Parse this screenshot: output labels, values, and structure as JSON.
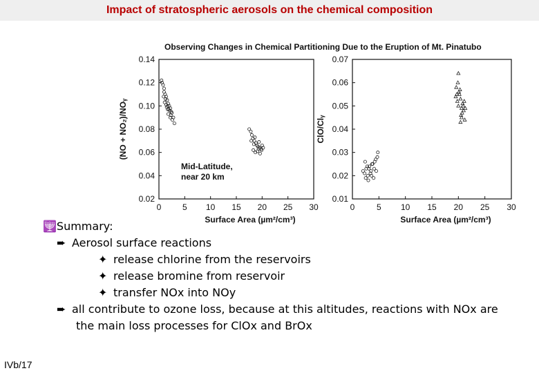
{
  "slide": {
    "title": "Impact of stratospheric aerosols on the chemical composition",
    "page_number": "IVb/17"
  },
  "figure": {
    "title": "Observing Changes in Chemical Partitioning Due to the Eruption of Mt. Pinatubo",
    "annotation_line1": "Mid-Latitude,",
    "annotation_line2": "near 20 km"
  },
  "chart_data": [
    {
      "type": "scatter",
      "xlabel": "Surface Area (µm²/cm³)",
      "ylabel": "(NO + NO₂)/NOᵧ",
      "xlim": [
        0,
        30
      ],
      "ylim": [
        0.02,
        0.14
      ],
      "xticks": [
        "0",
        "5",
        "10",
        "15",
        "20",
        "25",
        "30"
      ],
      "yticks": [
        "0.14",
        "0.12",
        "0.10",
        "0.08",
        "0.06",
        "0.04",
        "0.02"
      ],
      "series": [
        {
          "x": [
            0.5,
            0.8,
            1.0,
            1.2,
            1.4,
            1.6,
            1.8,
            2.0,
            2.2,
            2.4,
            0.6,
            1.0,
            1.3,
            1.7,
            2.1,
            2.5,
            2.8,
            1.1,
            1.5,
            1.9,
            2.3,
            0.9,
            1.4,
            1.8,
            2.6,
            3.0,
            2.2,
            1.7
          ],
          "y": [
            0.122,
            0.118,
            0.115,
            0.11,
            0.108,
            0.105,
            0.102,
            0.1,
            0.098,
            0.095,
            0.12,
            0.112,
            0.106,
            0.1,
            0.096,
            0.094,
            0.09,
            0.103,
            0.099,
            0.097,
            0.092,
            0.108,
            0.101,
            0.093,
            0.088,
            0.085,
            0.09,
            0.097
          ]
        },
        {
          "x": [
            17.5,
            17.8,
            18.0,
            18.2,
            18.5,
            18.8,
            19.0,
            19.2,
            19.5,
            19.8,
            20.0,
            18.3,
            18.7,
            19.1,
            19.6,
            20.2,
            17.9,
            18.4,
            19.3,
            19.9,
            18.6,
            19.4
          ],
          "y": [
            0.08,
            0.078,
            0.075,
            0.072,
            0.07,
            0.068,
            0.066,
            0.065,
            0.064,
            0.063,
            0.066,
            0.062,
            0.06,
            0.061,
            0.059,
            0.064,
            0.07,
            0.067,
            0.063,
            0.062,
            0.073,
            0.069
          ]
        }
      ]
    },
    {
      "type": "scatter",
      "xlabel": "Surface Area (µm²/cm³)",
      "ylabel": "ClO/Clᵧ",
      "xlim": [
        0,
        30
      ],
      "ylim": [
        0.01,
        0.07
      ],
      "xticks": [
        "0",
        "5",
        "10",
        "15",
        "20",
        "25",
        "30"
      ],
      "yticks": [
        "0.07",
        "0.06",
        "0.05",
        "0.04",
        "0.03",
        "0.02",
        "0.01"
      ],
      "series": [
        {
          "x": [
            19.5,
            19.8,
            20.0,
            20.2,
            20.4,
            20.6,
            20.8,
            21.0,
            19.6,
            20.1,
            20.5,
            20.9,
            21.2,
            19.9,
            20.3,
            20.7,
            21.1,
            20.0,
            20.6,
            21.3,
            19.7,
            20.4
          ],
          "y": [
            0.054,
            0.052,
            0.05,
            0.055,
            0.053,
            0.049,
            0.051,
            0.048,
            0.058,
            0.056,
            0.046,
            0.05,
            0.044,
            0.06,
            0.057,
            0.047,
            0.052,
            0.064,
            0.045,
            0.049,
            0.055,
            0.043
          ]
        },
        {
          "x": [
            2.0,
            2.3,
            2.6,
            2.9,
            3.2,
            3.5,
            3.8,
            4.1,
            4.4,
            4.7,
            2.5,
            3.0,
            3.6,
            4.2,
            4.8,
            2.8,
            3.4,
            4.0,
            3.1,
            3.7,
            4.5,
            2.4
          ],
          "y": [
            0.022,
            0.021,
            0.023,
            0.02,
            0.024,
            0.022,
            0.025,
            0.023,
            0.027,
            0.028,
            0.019,
            0.018,
            0.02,
            0.026,
            0.03,
            0.024,
            0.021,
            0.019,
            0.023,
            0.025,
            0.022,
            0.026
          ]
        }
      ]
    }
  ],
  "summary": {
    "heading": "Summary:",
    "level1_arrow": "➨",
    "item1": "Aerosol surface reactions",
    "sub_bullet": "✦",
    "sub1": "release chlorine from the reservoirs",
    "sub2": "release bromine from reservoir",
    "sub3": "transfer NOx into NOy",
    "item2_line1": "all contribute to ozone loss, because at this altitudes, reactions with NOx are",
    "item2_line2": "the main loss processes for ClOx and BrOx"
  }
}
